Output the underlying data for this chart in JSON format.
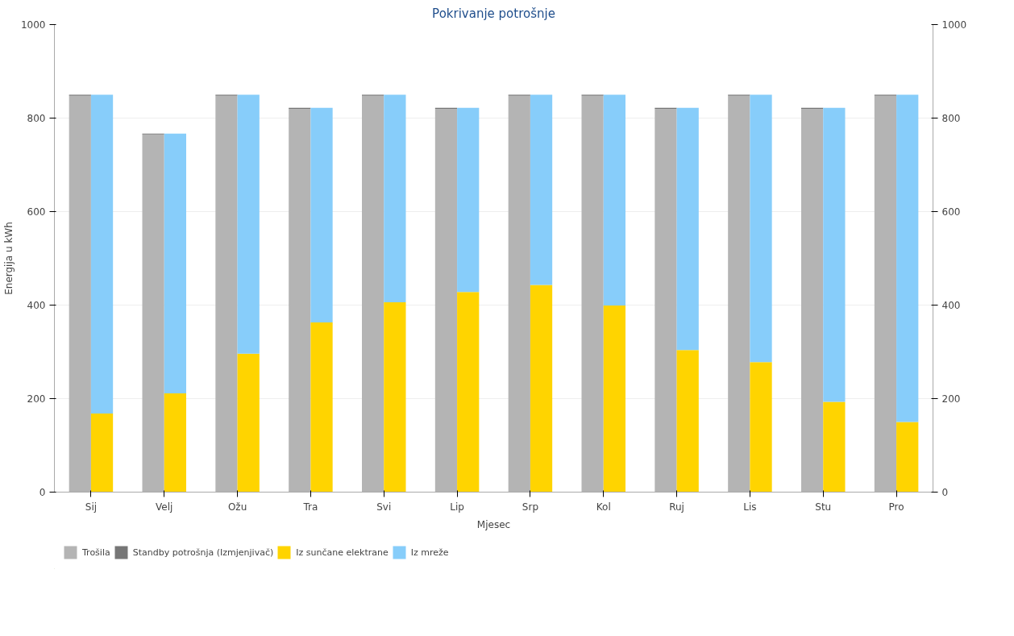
{
  "chart_data": {
    "type": "bar",
    "title": "Pokrivanje potrošnje",
    "xlabel": "Mjesec",
    "ylabel": "Energija u kWh",
    "categories": [
      "Sij",
      "Velj",
      "Ožu",
      "Tra",
      "Svi",
      "Lip",
      "Srp",
      "Kol",
      "Ruj",
      "Lis",
      "Stu",
      "Pro"
    ],
    "stacked": true,
    "series": [
      {
        "name": "Trošila",
        "color": "#b4b4b4",
        "values": [
          848,
          765,
          848,
          820,
          848,
          820,
          848,
          848,
          820,
          848,
          820,
          848
        ]
      },
      {
        "name": "Standby potrošnja (Izmjenjivač)",
        "color": "#767676",
        "values": [
          2,
          2,
          2,
          2,
          2,
          2,
          2,
          2,
          2,
          2,
          2,
          2
        ]
      },
      {
        "name": "Iz sunčane elektrane",
        "color": "#ffd400",
        "axis": "y2",
        "values": [
          168,
          211,
          296,
          363,
          406,
          428,
          443,
          399,
          304,
          278,
          193,
          150
        ]
      },
      {
        "name": "Iz mreže",
        "color": "#87cdfa",
        "axis": "y2",
        "values": [
          682,
          556,
          554,
          459,
          444,
          394,
          407,
          451,
          518,
          572,
          629,
          700
        ]
      }
    ],
    "ylim": [
      0,
      1000
    ],
    "yticks": [
      0,
      200,
      400,
      600,
      800,
      1000
    ],
    "y2lim": [
      0,
      1000
    ],
    "y2ticks": [
      0,
      200,
      400,
      600,
      800,
      1000
    ],
    "grid": "y",
    "legend": "bottom left"
  }
}
